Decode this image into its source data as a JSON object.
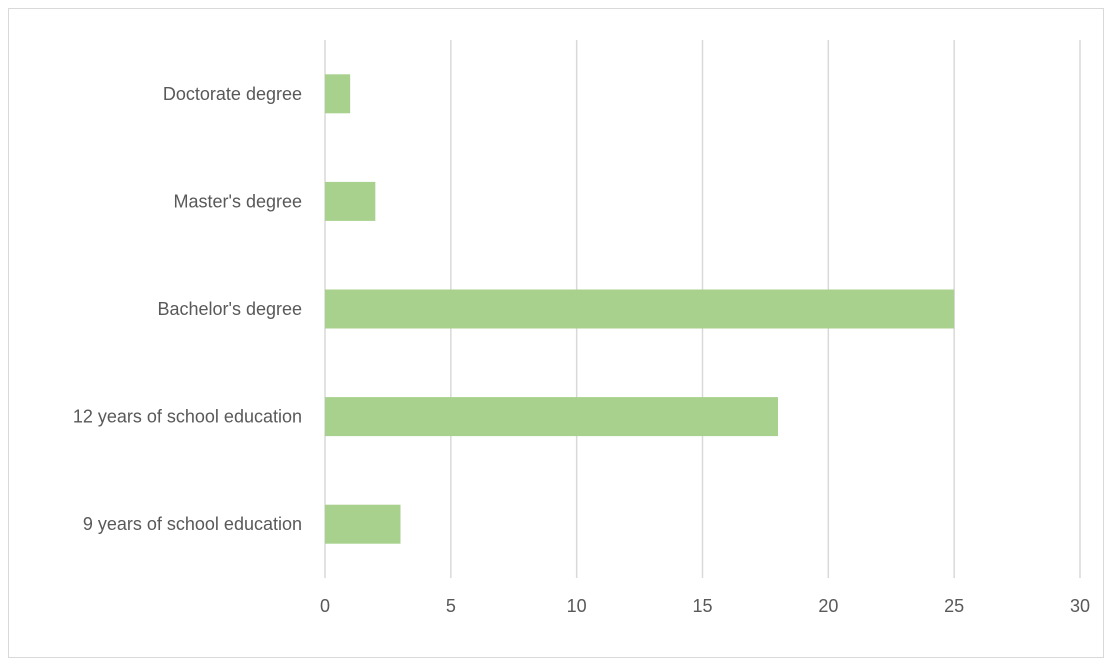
{
  "chart_data": {
    "type": "bar",
    "orientation": "horizontal",
    "categories": [
      "Doctorate degree",
      "Master's degree",
      "Bachelor's degree",
      "12 years of school education",
      "9 years of school education"
    ],
    "values": [
      1,
      2,
      25,
      18,
      3
    ],
    "title": "",
    "xlabel": "",
    "ylabel": "",
    "xlim": [
      0,
      30
    ],
    "xticks": [
      "0",
      "5",
      "10",
      "15",
      "20",
      "25",
      "30"
    ],
    "grid": "vertical",
    "legend": "none",
    "bar_color": "#a9d18e",
    "grid_color": "#d9d9d9",
    "text_color": "#595959"
  }
}
